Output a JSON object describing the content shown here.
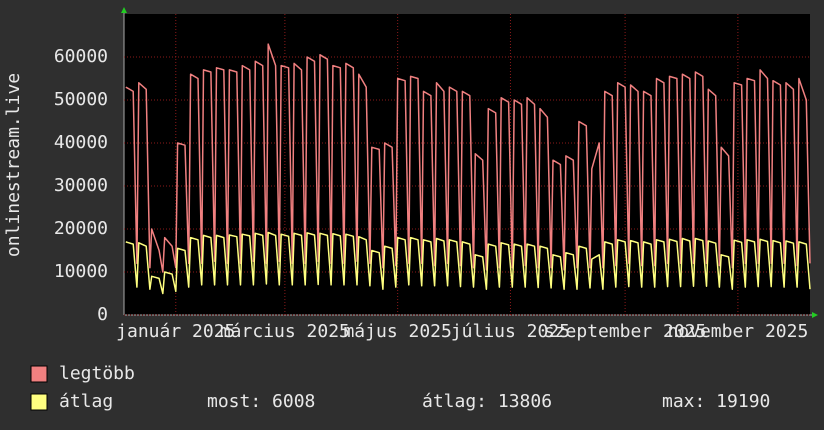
{
  "chart_data": {
    "type": "line",
    "y_label": "onlinestream.live",
    "x": [
      -27,
      -23,
      -21,
      -20,
      -16,
      -14,
      -13,
      -9,
      -7,
      -6,
      -2,
      0,
      1,
      5,
      7,
      8,
      12,
      14,
      15,
      19,
      21,
      22,
      26,
      28,
      29,
      33,
      35,
      36,
      40,
      42,
      43,
      47,
      49,
      50,
      54,
      56,
      57,
      61,
      63,
      64,
      68,
      70,
      71,
      75,
      77,
      78,
      82,
      84,
      85,
      89,
      91,
      92,
      96,
      98,
      99,
      103,
      105,
      106,
      110,
      112,
      113,
      117,
      119,
      120,
      124,
      126,
      127,
      131,
      133,
      134,
      138,
      140,
      141,
      145,
      147,
      148,
      152,
      154,
      155,
      159,
      161,
      162,
      166,
      168,
      169,
      173,
      175,
      176,
      180,
      182,
      183,
      187,
      189,
      190,
      194,
      196,
      197,
      201,
      203,
      204,
      208,
      210,
      211,
      215,
      217,
      218,
      222,
      224,
      225,
      229,
      231,
      232,
      236,
      238,
      239,
      243,
      245,
      246,
      250,
      252,
      253,
      257,
      259,
      260,
      264,
      266,
      267,
      271,
      273,
      274,
      278,
      280,
      281,
      285,
      287,
      288,
      292,
      294,
      295,
      299,
      301,
      302,
      306,
      308,
      309,
      313,
      315,
      316,
      320,
      322,
      323,
      327,
      329,
      330,
      334,
      336,
      337,
      341,
      343
    ],
    "xlim": [
      -28,
      343
    ],
    "xticks": [
      {
        "value": 0,
        "label": "január 2025"
      },
      {
        "value": 59,
        "label": "március 2025"
      },
      {
        "value": 120,
        "label": "május 2025"
      },
      {
        "value": 181,
        "label": "július 2025"
      },
      {
        "value": 243,
        "label": "szeptember 2025"
      },
      {
        "value": 304,
        "label": "november 2025"
      }
    ],
    "ylim": [
      0,
      70000
    ],
    "yticks": [
      0,
      10000,
      20000,
      30000,
      40000,
      50000,
      60000
    ],
    "grid": true,
    "series": [
      {
        "name": "legtöbb",
        "color": "#f08080",
        "values": [
          53000,
          52000,
          12000,
          54000,
          52500,
          11000,
          20000,
          15000,
          10000,
          18000,
          16000,
          11000,
          40000,
          39500,
          12000,
          56000,
          55000,
          12000,
          57000,
          56500,
          12500,
          57500,
          57000,
          12000,
          57000,
          56500,
          12000,
          58000,
          57000,
          12500,
          59000,
          58000,
          12000,
          63000,
          58000,
          12500,
          58000,
          57500,
          12000,
          58500,
          57000,
          12000,
          60000,
          59000,
          12500,
          60500,
          59500,
          12000,
          58000,
          57500,
          12000,
          58500,
          57500,
          12500,
          56000,
          53000,
          12000,
          39000,
          38500,
          11000,
          40000,
          39000,
          11500,
          55000,
          54500,
          12000,
          55500,
          55000,
          12000,
          52000,
          51000,
          11500,
          54000,
          52000,
          12000,
          53000,
          52000,
          11500,
          52000,
          51000,
          11000,
          37500,
          36000,
          10500,
          48000,
          47000,
          11000,
          50500,
          49500,
          11000,
          50000,
          49000,
          11500,
          50500,
          49000,
          11000,
          48000,
          46000,
          11000,
          36000,
          35000,
          10500,
          37000,
          36000,
          11000,
          45000,
          44000,
          11000,
          34000,
          40000,
          11000,
          52000,
          51000,
          11500,
          54000,
          53000,
          12000,
          53500,
          52000,
          11500,
          52000,
          51000,
          11500,
          55000,
          54000,
          12000,
          55500,
          55000,
          12000,
          56000,
          55000,
          12000,
          56500,
          55500,
          12000,
          52500,
          51000,
          11500,
          39000,
          37000,
          11000,
          54000,
          53500,
          12000,
          55000,
          54500,
          12000,
          57000,
          55000,
          12000,
          54500,
          53500,
          12000,
          54000,
          52500,
          11500,
          55000,
          50000,
          12000
        ]
      },
      {
        "name": "átlag",
        "color": "#ffff80",
        "values": [
          17000,
          16500,
          6500,
          16800,
          16000,
          6000,
          9000,
          8500,
          5000,
          10000,
          9500,
          5500,
          15500,
          15000,
          6500,
          18000,
          17500,
          7000,
          18500,
          18000,
          7000,
          18500,
          18000,
          7000,
          18600,
          18200,
          7000,
          18800,
          18400,
          7000,
          19000,
          18500,
          7200,
          19190,
          18500,
          7000,
          18800,
          18300,
          7000,
          19000,
          18500,
          7000,
          19100,
          18600,
          7100,
          19000,
          18500,
          7000,
          18900,
          18400,
          7000,
          18800,
          18300,
          7000,
          18200,
          17500,
          6800,
          15000,
          14500,
          6000,
          16000,
          15500,
          6500,
          18000,
          17500,
          7000,
          18000,
          17500,
          6800,
          17500,
          17000,
          6800,
          17800,
          17200,
          6800,
          17500,
          17000,
          6600,
          17000,
          16500,
          6500,
          14000,
          13500,
          6000,
          16500,
          16000,
          6500,
          16800,
          16300,
          6500,
          16500,
          16000,
          6500,
          16500,
          16000,
          6400,
          16000,
          15500,
          6300,
          14000,
          13500,
          6000,
          14500,
          14000,
          6000,
          16000,
          15500,
          6300,
          13000,
          14000,
          6000,
          17000,
          16500,
          6500,
          17500,
          17000,
          6600,
          17300,
          16800,
          6500,
          17000,
          16500,
          6500,
          17500,
          17000,
          6600,
          17600,
          17100,
          6600,
          17800,
          17200,
          6700,
          17800,
          17300,
          6700,
          17200,
          16700,
          6500,
          14000,
          13500,
          6000,
          17400,
          16900,
          6500,
          17500,
          17000,
          6600,
          17600,
          17100,
          6600,
          17300,
          16800,
          6500,
          17200,
          16700,
          6500,
          17000,
          16500,
          6008
        ]
      }
    ],
    "stats": [
      "most: 6008",
      "átlag: 13806",
      "max: 19190"
    ]
  }
}
